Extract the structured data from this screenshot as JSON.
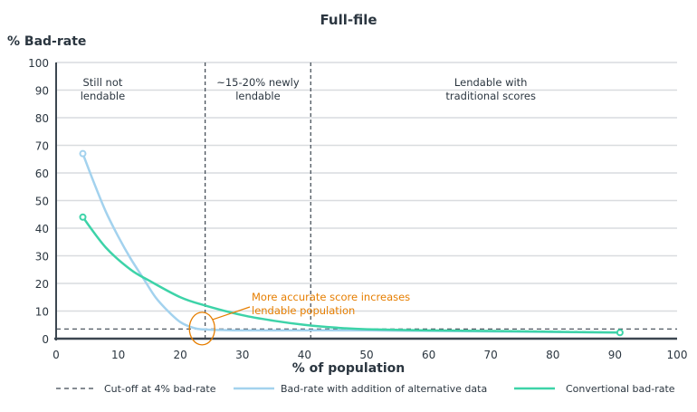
{
  "chart_data": {
    "type": "line",
    "title": "Full-file",
    "xlabel": "% of population",
    "ylabel": "% Bad-rate",
    "xlim": [
      0,
      100
    ],
    "ylim": [
      0,
      100
    ],
    "xticks": [
      0,
      10,
      20,
      30,
      40,
      50,
      60,
      70,
      80,
      90,
      100
    ],
    "yticks": [
      0,
      10,
      20,
      30,
      40,
      50,
      60,
      70,
      80,
      90,
      100
    ],
    "grid": "horizontal",
    "legend_position": "bottom",
    "cutoff": {
      "name": "Cut-off at 4% bad-rate",
      "y": 3.5,
      "color": "#3c4650"
    },
    "regions": [
      {
        "label_lines": [
          "Still not",
          "lendable"
        ],
        "x_center": 7.5
      },
      {
        "label_lines": [
          "~15-20% newly",
          "lendable"
        ],
        "x_center": 32.5
      },
      {
        "label_lines": [
          "Lendable with",
          "traditional scores"
        ],
        "x_center": 70
      }
    ],
    "region_dividers": [
      24,
      41
    ],
    "series": [
      {
        "name": "Bad-rate with addition of alternative data",
        "color": "#a3d2ee",
        "x": [
          4.3,
          6,
          8,
          10,
          12,
          14,
          16,
          18,
          20,
          22,
          24,
          30,
          40,
          50,
          70,
          90.8
        ],
        "y": [
          67,
          57,
          46,
          37,
          29,
          22,
          15,
          10,
          6,
          4,
          3.3,
          3,
          3,
          3,
          2.6,
          2.2
        ],
        "marker_first": true
      },
      {
        "name": "Convertional bad-rate",
        "color": "#3dd3a8",
        "x": [
          4.3,
          8,
          12,
          15,
          20,
          24,
          30,
          35,
          40,
          45,
          50,
          60,
          70,
          80,
          90.8
        ],
        "y": [
          44,
          33,
          25,
          21,
          15,
          12,
          8.5,
          6.5,
          5,
          4,
          3.4,
          3,
          2.8,
          2.5,
          2.2
        ],
        "marker_first": true,
        "marker_last": true
      }
    ],
    "annotation": {
      "text_lines": [
        "More accurate score increases",
        "lendable population"
      ],
      "color": "#e67e00",
      "target": [
        23.5,
        3
      ]
    }
  }
}
